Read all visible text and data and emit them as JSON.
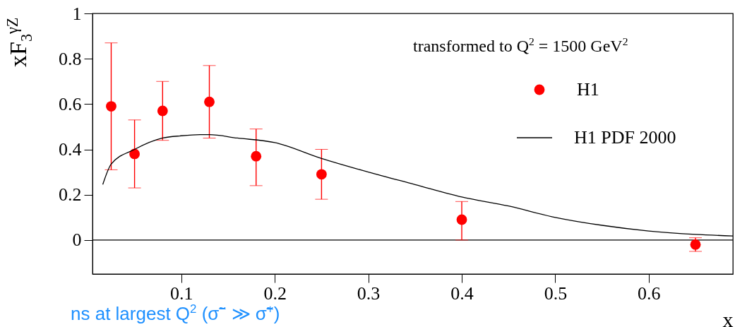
{
  "chart_data": {
    "type": "scatter",
    "ylabel": "xF$_{3}$$^{γZ}$",
    "xlabel": "x",
    "annotations": [
      "transformed to Q$^{2}$ = 1500 GeV$^{2}$",
      "ns at largest Q$^{2}$ (σ̃$^{−}$ ≫ σ̃$^{+}$)"
    ],
    "xlim": [
      0.005,
      0.69
    ],
    "xticks": [
      0.1,
      0.2,
      0.3,
      0.4,
      0.5,
      0.6
    ],
    "ylim": [
      -0.15,
      1
    ],
    "yticks": [
      0,
      0.2,
      0.4,
      0.6,
      0.8,
      1
    ],
    "legend": "top right",
    "grid": false,
    "ref_lines": [
      {
        "axis": "y",
        "value": 0,
        "color": "#000000"
      }
    ],
    "series": [
      {
        "name": "H1",
        "marker": "circle",
        "color": "#ff0000",
        "x": [
          0.025,
          0.05,
          0.08,
          0.13,
          0.18,
          0.25,
          0.4,
          0.65
        ],
        "values": [
          0.59,
          0.38,
          0.57,
          0.61,
          0.37,
          0.29,
          0.09,
          -0.02
        ],
        "errors": [
          [
            0.31,
            0.87
          ],
          [
            0.23,
            0.53
          ],
          [
            0.44,
            0.7
          ],
          [
            0.45,
            0.77
          ],
          [
            0.24,
            0.49
          ],
          [
            0.18,
            0.4
          ],
          [
            0.0,
            0.17
          ],
          [
            -0.05,
            0.01
          ]
        ]
      },
      {
        "name": "H1 PDF 2000",
        "type": "line",
        "line_style": "solid",
        "color": "#000000",
        "x": [
          0.016,
          0.025,
          0.05,
          0.08,
          0.1,
          0.12,
          0.13,
          0.16,
          0.2,
          0.25,
          0.3,
          0.35,
          0.4,
          0.45,
          0.5,
          0.55,
          0.6,
          0.65,
          0.69
        ],
        "values": [
          0.245,
          0.335,
          0.4,
          0.45,
          0.46,
          0.465,
          0.465,
          0.45,
          0.43,
          0.36,
          0.3,
          0.245,
          0.19,
          0.15,
          0.1,
          0.065,
          0.04,
          0.025,
          0.018
        ]
      }
    ]
  }
}
